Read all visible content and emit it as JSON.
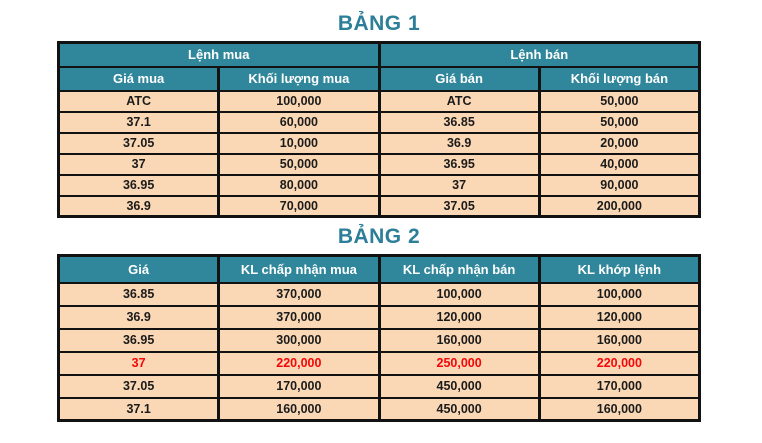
{
  "colors": {
    "header_teal": "#30879B",
    "title_teal": "#2C7E99",
    "row_peach": "#FAD8B5",
    "border_black": "#121212",
    "text_dark": "#1b1b1b",
    "header_text_white": "#ffffff",
    "highlight_red": "#F60606"
  },
  "chart_data": [
    {
      "type": "table",
      "title": "BẢNG 1",
      "group_headers": [
        {
          "label": "Lệnh mua",
          "colspan": 2
        },
        {
          "label": "Lệnh bán",
          "colspan": 2
        }
      ],
      "columns": [
        "Giá mua",
        "Khối lượng mua",
        "Giá bán",
        "Khối lượng bán"
      ],
      "rows": [
        [
          "ATC",
          "100,000",
          "ATC",
          "50,000"
        ],
        [
          "37.1",
          "60,000",
          "36.85",
          "50,000"
        ],
        [
          "37.05",
          "10,000",
          "36.9",
          "20,000"
        ],
        [
          "37",
          "50,000",
          "36.95",
          "40,000"
        ],
        [
          "36.95",
          "80,000",
          "37",
          "90,000"
        ],
        [
          "36.9",
          "70,000",
          "37.05",
          "200,000"
        ]
      ],
      "highlight_row": null
    },
    {
      "type": "table",
      "title": "BẢNG 2",
      "columns": [
        "Giá",
        "KL chấp nhận mua",
        "KL chấp nhận bán",
        "KL khớp lệnh"
      ],
      "rows": [
        [
          "36.85",
          "370,000",
          "100,000",
          "100,000"
        ],
        [
          "36.9",
          "370,000",
          "120,000",
          "120,000"
        ],
        [
          "36.95",
          "300,000",
          "160,000",
          "160,000"
        ],
        [
          "37",
          "220,000",
          "250,000",
          "220,000"
        ],
        [
          "37.05",
          "170,000",
          "450,000",
          "170,000"
        ],
        [
          "37.1",
          "160,000",
          "450,000",
          "160,000"
        ]
      ],
      "highlight_row": 3
    }
  ]
}
